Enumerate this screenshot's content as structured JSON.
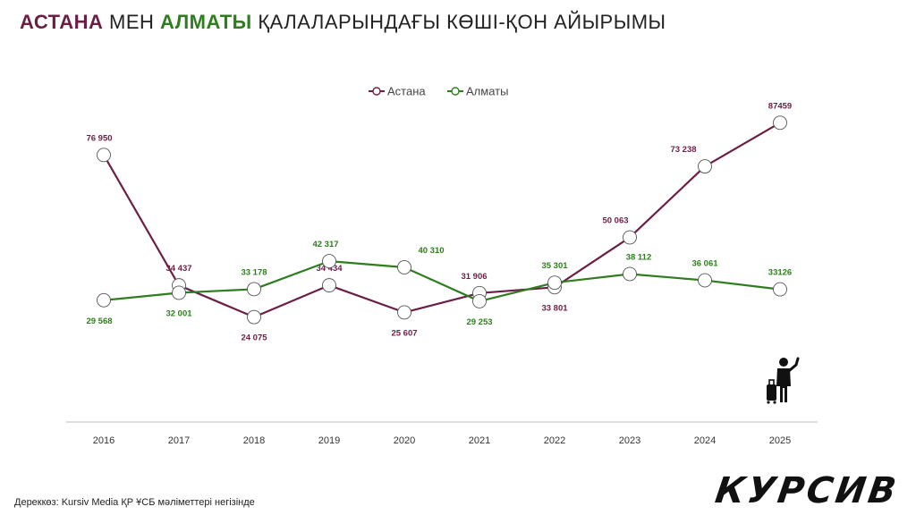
{
  "title": {
    "part1": "АСТАНА",
    "part2": " МЕН ",
    "part3": "АЛМАТЫ",
    "part4": " ҚАЛАЛАРЫНДАҒЫ КӨШІ-ҚОН АЙЫРЫМЫ"
  },
  "source_note": "Дереккөз: Kursiv Media ҚР ҰСБ мәліметтері негізінде",
  "logo_text": "КУРСИВ",
  "icon": "traveler-with-suitcase-icon",
  "colors": {
    "astana": "#6b1f45",
    "almaty": "#2e7d1e"
  },
  "chart_data": {
    "type": "line",
    "categories": [
      "2016",
      "2017",
      "2018",
      "2019",
      "2020",
      "2021",
      "2022",
      "2023",
      "2024",
      "2025"
    ],
    "legend_position": "top-center",
    "grid": false,
    "series": [
      {
        "name": "Астана",
        "values": [
          76950,
          34437,
          24075,
          34434,
          25607,
          31906,
          33801,
          50063,
          73238,
          87459
        ],
        "labels": [
          "76 950",
          "34 437",
          "24 075",
          "34 434",
          "25 607",
          "31 906",
          "33 801",
          "50 063",
          "73 238",
          "87459"
        ]
      },
      {
        "name": "Алматы",
        "values": [
          29568,
          32001,
          33178,
          42317,
          40310,
          29253,
          35301,
          38112,
          36061,
          33126
        ],
        "labels": [
          "29 568",
          "32 001",
          "33 178",
          "42 317",
          "40 310",
          "29 253",
          "35 301",
          "38 112",
          "36 061",
          "33126"
        ]
      }
    ]
  }
}
